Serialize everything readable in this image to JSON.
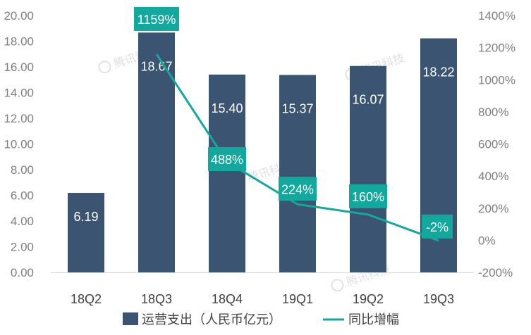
{
  "chart_data": {
    "type": "bar+line",
    "categories": [
      "18Q2",
      "18Q3",
      "18Q4",
      "19Q1",
      "19Q2",
      "19Q3"
    ],
    "series": [
      {
        "name": "运营支出（人民币亿元）",
        "type": "bar",
        "axis": "left",
        "values": [
          6.19,
          18.67,
          15.4,
          15.37,
          16.07,
          18.22
        ],
        "labels": [
          "6.19",
          "18.67",
          "15.40",
          "15.37",
          "16.07",
          "18.22"
        ],
        "color": "#3a5472"
      },
      {
        "name": "同比增幅",
        "type": "line",
        "axis": "right",
        "values": [
          null,
          1159,
          488,
          224,
          160,
          -2
        ],
        "labels": [
          "",
          "1159%",
          "488%",
          "224%",
          "160%",
          "-2%"
        ],
        "color": "#13a89e"
      }
    ],
    "left_axis": {
      "min": 0,
      "max": 20,
      "step": 2,
      "tick_labels": [
        "0.00",
        "2.00",
        "4.00",
        "6.00",
        "8.00",
        "10.00",
        "12.00",
        "14.00",
        "16.00",
        "18.00",
        "20.00"
      ]
    },
    "right_axis": {
      "min": -200,
      "max": 1400,
      "step": 200,
      "tick_labels": [
        "-200%",
        "0%",
        "200%",
        "400%",
        "600%",
        "800%",
        "1000%",
        "1200%",
        "1400%"
      ]
    },
    "legend_position": "bottom",
    "grid": false,
    "watermark": "腾讯科技"
  }
}
